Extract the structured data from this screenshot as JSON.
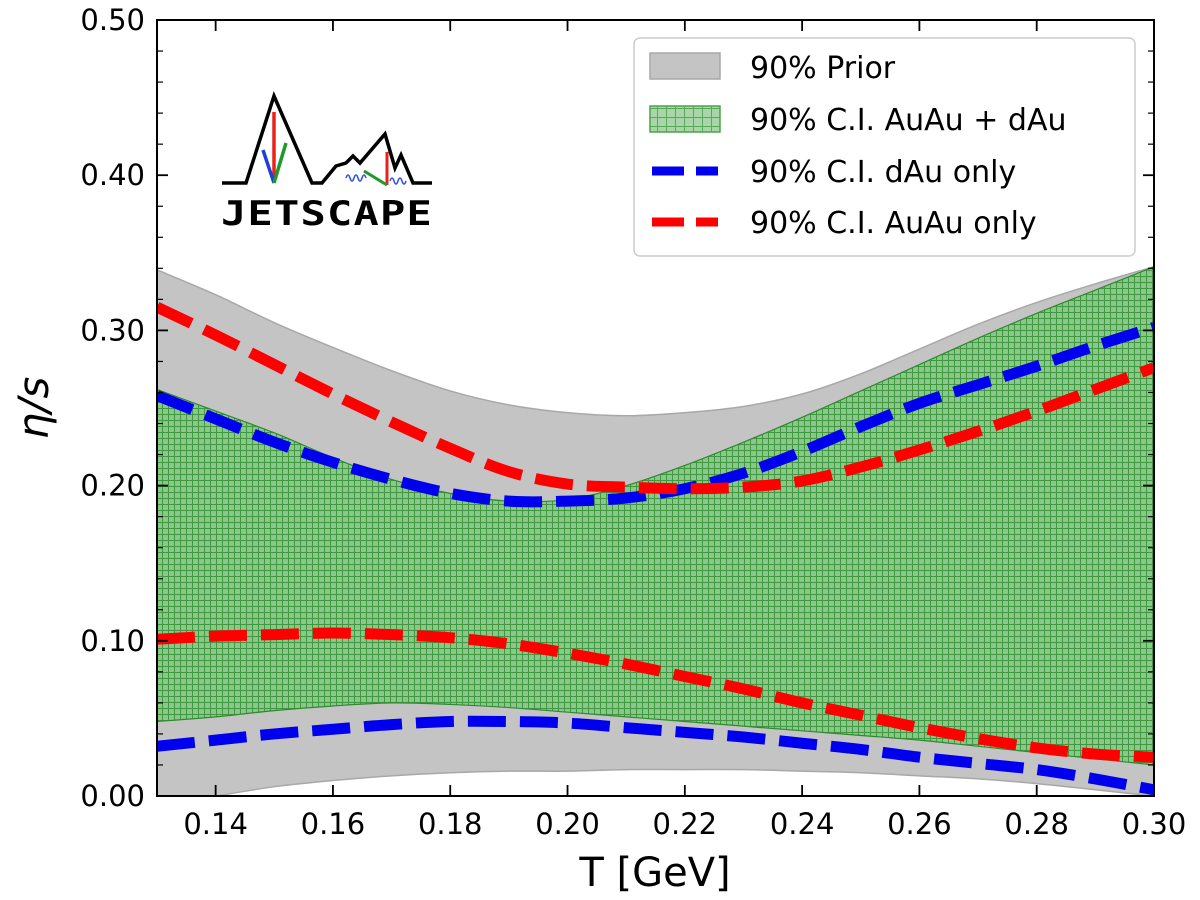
{
  "chart_data": {
    "type": "area",
    "xlabel": "T [GeV]",
    "ylabel": "η/s",
    "xlim": [
      0.13,
      0.3
    ],
    "ylim": [
      0.0,
      0.5
    ],
    "xticks": [
      "0.14",
      "0.16",
      "0.18",
      "0.20",
      "0.22",
      "0.24",
      "0.26",
      "0.28",
      "0.30"
    ],
    "yticks": [
      "0.00",
      "0.10",
      "0.20",
      "0.30",
      "0.40",
      "0.50"
    ],
    "grid": false,
    "legend_position": "top-right",
    "logo_text": "JETSCAPE",
    "bands": [
      {
        "name": "90% Prior",
        "color": "#c4c4c4",
        "edge": "#a8a8a8",
        "x": [
          0.13,
          0.14,
          0.15,
          0.16,
          0.17,
          0.18,
          0.19,
          0.2,
          0.21,
          0.22,
          0.23,
          0.24,
          0.25,
          0.26,
          0.27,
          0.28,
          0.29,
          0.3
        ],
        "upper": [
          0.339,
          0.323,
          0.305,
          0.289,
          0.274,
          0.261,
          0.252,
          0.247,
          0.245,
          0.247,
          0.251,
          0.259,
          0.272,
          0.288,
          0.304,
          0.318,
          0.33,
          0.341
        ],
        "lower": [
          -0.005,
          0.0,
          0.006,
          0.01,
          0.013,
          0.015,
          0.016,
          0.016,
          0.017,
          0.017,
          0.017,
          0.016,
          0.015,
          0.013,
          0.011,
          0.008,
          0.004,
          0.0
        ]
      },
      {
        "name": "90% C.I. AuAu + dAu",
        "color": "#8cc68c",
        "hatch": "#3e9a3e",
        "edge": "#2f8a2f",
        "x": [
          0.13,
          0.14,
          0.15,
          0.16,
          0.17,
          0.18,
          0.19,
          0.2,
          0.21,
          0.22,
          0.23,
          0.24,
          0.25,
          0.26,
          0.27,
          0.28,
          0.29,
          0.3
        ],
        "upper": [
          0.262,
          0.248,
          0.234,
          0.218,
          0.204,
          0.195,
          0.19,
          0.191,
          0.2,
          0.213,
          0.228,
          0.244,
          0.261,
          0.278,
          0.295,
          0.311,
          0.326,
          0.341
        ],
        "lower": [
          0.048,
          0.051,
          0.055,
          0.058,
          0.06,
          0.059,
          0.057,
          0.054,
          0.051,
          0.048,
          0.045,
          0.042,
          0.039,
          0.036,
          0.032,
          0.028,
          0.024,
          0.02
        ]
      }
    ],
    "series": [
      {
        "name": "90% C.I. dAu only",
        "color": "#0000ee",
        "x": [
          0.13,
          0.14,
          0.15,
          0.16,
          0.17,
          0.18,
          0.19,
          0.2,
          0.21,
          0.22,
          0.23,
          0.24,
          0.25,
          0.26,
          0.27,
          0.28,
          0.29,
          0.3
        ],
        "upper": [
          0.258,
          0.243,
          0.228,
          0.215,
          0.204,
          0.195,
          0.19,
          0.19,
          0.192,
          0.198,
          0.208,
          0.222,
          0.238,
          0.253,
          0.265,
          0.277,
          0.29,
          0.302
        ],
        "lower": [
          0.032,
          0.036,
          0.04,
          0.043,
          0.046,
          0.048,
          0.048,
          0.047,
          0.044,
          0.041,
          0.038,
          0.034,
          0.03,
          0.025,
          0.021,
          0.017,
          0.011,
          0.004
        ]
      },
      {
        "name": "90% C.I. AuAu only",
        "color": "#ff0000",
        "x": [
          0.13,
          0.14,
          0.15,
          0.16,
          0.17,
          0.18,
          0.19,
          0.2,
          0.21,
          0.22,
          0.23,
          0.24,
          0.25,
          0.26,
          0.27,
          0.28,
          0.29,
          0.3
        ],
        "upper": [
          0.315,
          0.297,
          0.278,
          0.259,
          0.241,
          0.224,
          0.209,
          0.201,
          0.199,
          0.198,
          0.199,
          0.203,
          0.212,
          0.223,
          0.235,
          0.248,
          0.262,
          0.276
        ],
        "lower": [
          0.101,
          0.103,
          0.104,
          0.105,
          0.104,
          0.102,
          0.098,
          0.092,
          0.085,
          0.077,
          0.069,
          0.06,
          0.052,
          0.044,
          0.037,
          0.031,
          0.027,
          0.025
        ]
      }
    ]
  }
}
